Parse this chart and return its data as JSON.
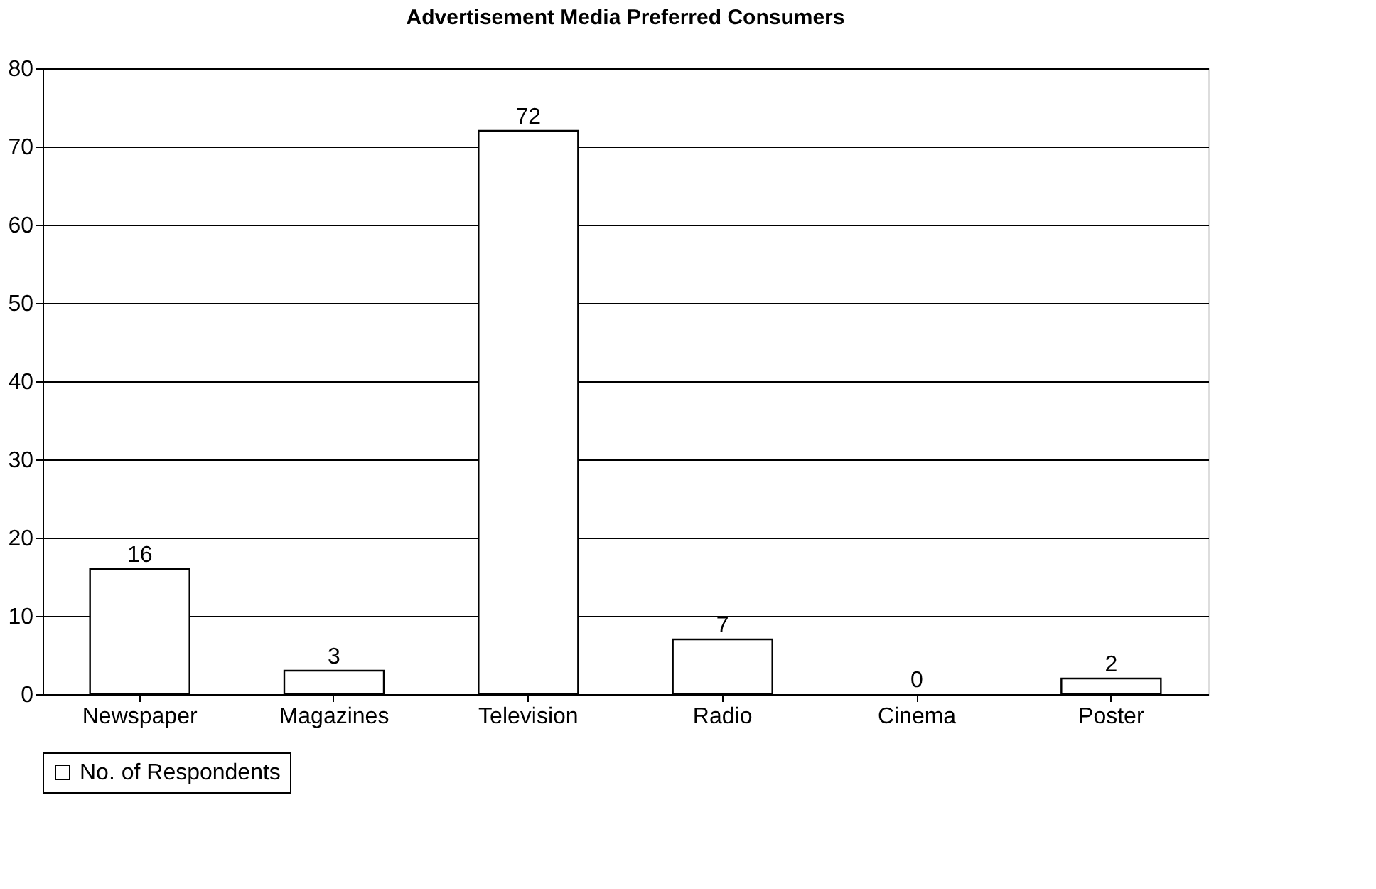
{
  "chart_data": {
    "type": "bar",
    "title": "Advertisement Media Preferred Consumers",
    "categories": [
      "Newspaper",
      "Magazines",
      "Television",
      "Radio",
      "Cinema",
      "Poster"
    ],
    "series": [
      {
        "name": "No. of Respondents",
        "color": "#ffffff",
        "values": [
          16,
          3,
          72,
          7,
          0,
          2
        ]
      }
    ],
    "ylim": [
      0,
      80
    ],
    "yticks": [
      0,
      10,
      20,
      30,
      40,
      50,
      60,
      70,
      80
    ],
    "grid": "y",
    "legend": "bottom",
    "data_labels": true
  }
}
